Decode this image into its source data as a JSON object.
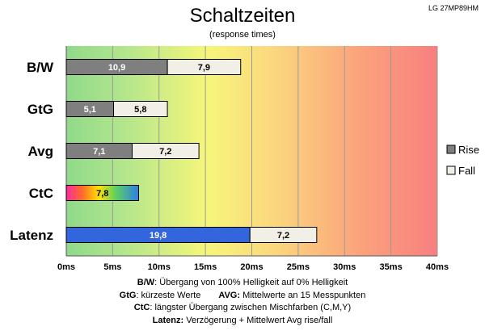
{
  "title": "Schaltzeiten",
  "subtitle": "(response times)",
  "monitor": "LG 27MP89HM",
  "chart_data": {
    "type": "bar",
    "orientation": "horizontal",
    "stacked": true,
    "categories": [
      "B/W",
      "GtG",
      "Avg",
      "CtC",
      "Latenz"
    ],
    "series": [
      {
        "name": "Rise",
        "values": [
          10.9,
          5.1,
          7.1,
          null,
          null
        ],
        "color": "#7f7f7f"
      },
      {
        "name": "Fall",
        "values": [
          7.9,
          5.8,
          7.2,
          null,
          null
        ],
        "color": "#f2f0e6"
      }
    ],
    "ctc": {
      "value": 7.8,
      "label": "7,8",
      "fill": "rainbow-gradient"
    },
    "latenz": {
      "values": [
        19.8,
        7.2
      ],
      "labels": [
        "19,8",
        "7,2"
      ],
      "colors": [
        "#3366dd",
        "#f2f0e6"
      ]
    },
    "data_labels": {
      "rise": [
        "10,9",
        "5,1",
        "7,1"
      ],
      "fall": [
        "7,9",
        "5,8",
        "7,2"
      ]
    },
    "xlim": [
      0,
      40
    ],
    "xticks": [
      0,
      5,
      10,
      15,
      20,
      25,
      30,
      35,
      40
    ],
    "xtick_labels": [
      "0ms",
      "5ms",
      "10ms",
      "15ms",
      "20ms",
      "25ms",
      "30ms",
      "35ms",
      "40ms"
    ],
    "background": "gradient green-yellow-red",
    "grid": true,
    "legend": {
      "position": "right",
      "entries": [
        "Rise",
        "Fall"
      ]
    }
  },
  "footnotes": {
    "bw_key": "B/W",
    "bw_text": ":  Übergang von 100% Helligkeit auf 0% Helligkeit",
    "gtg_key": "GtG",
    "gtg_text": ": kürzeste  Werte",
    "avg_key": "AVG:",
    "avg_text": " Mittelwerte  an 15 Messpunkten",
    "ctc_key": "CtC",
    "ctc_text": ": längster Übergang zwischen Mischfarben (C,M,Y)",
    "lat_key": "Latenz:",
    "lat_text": " Verzögerung  + Mittelwert Avg rise/fall"
  }
}
